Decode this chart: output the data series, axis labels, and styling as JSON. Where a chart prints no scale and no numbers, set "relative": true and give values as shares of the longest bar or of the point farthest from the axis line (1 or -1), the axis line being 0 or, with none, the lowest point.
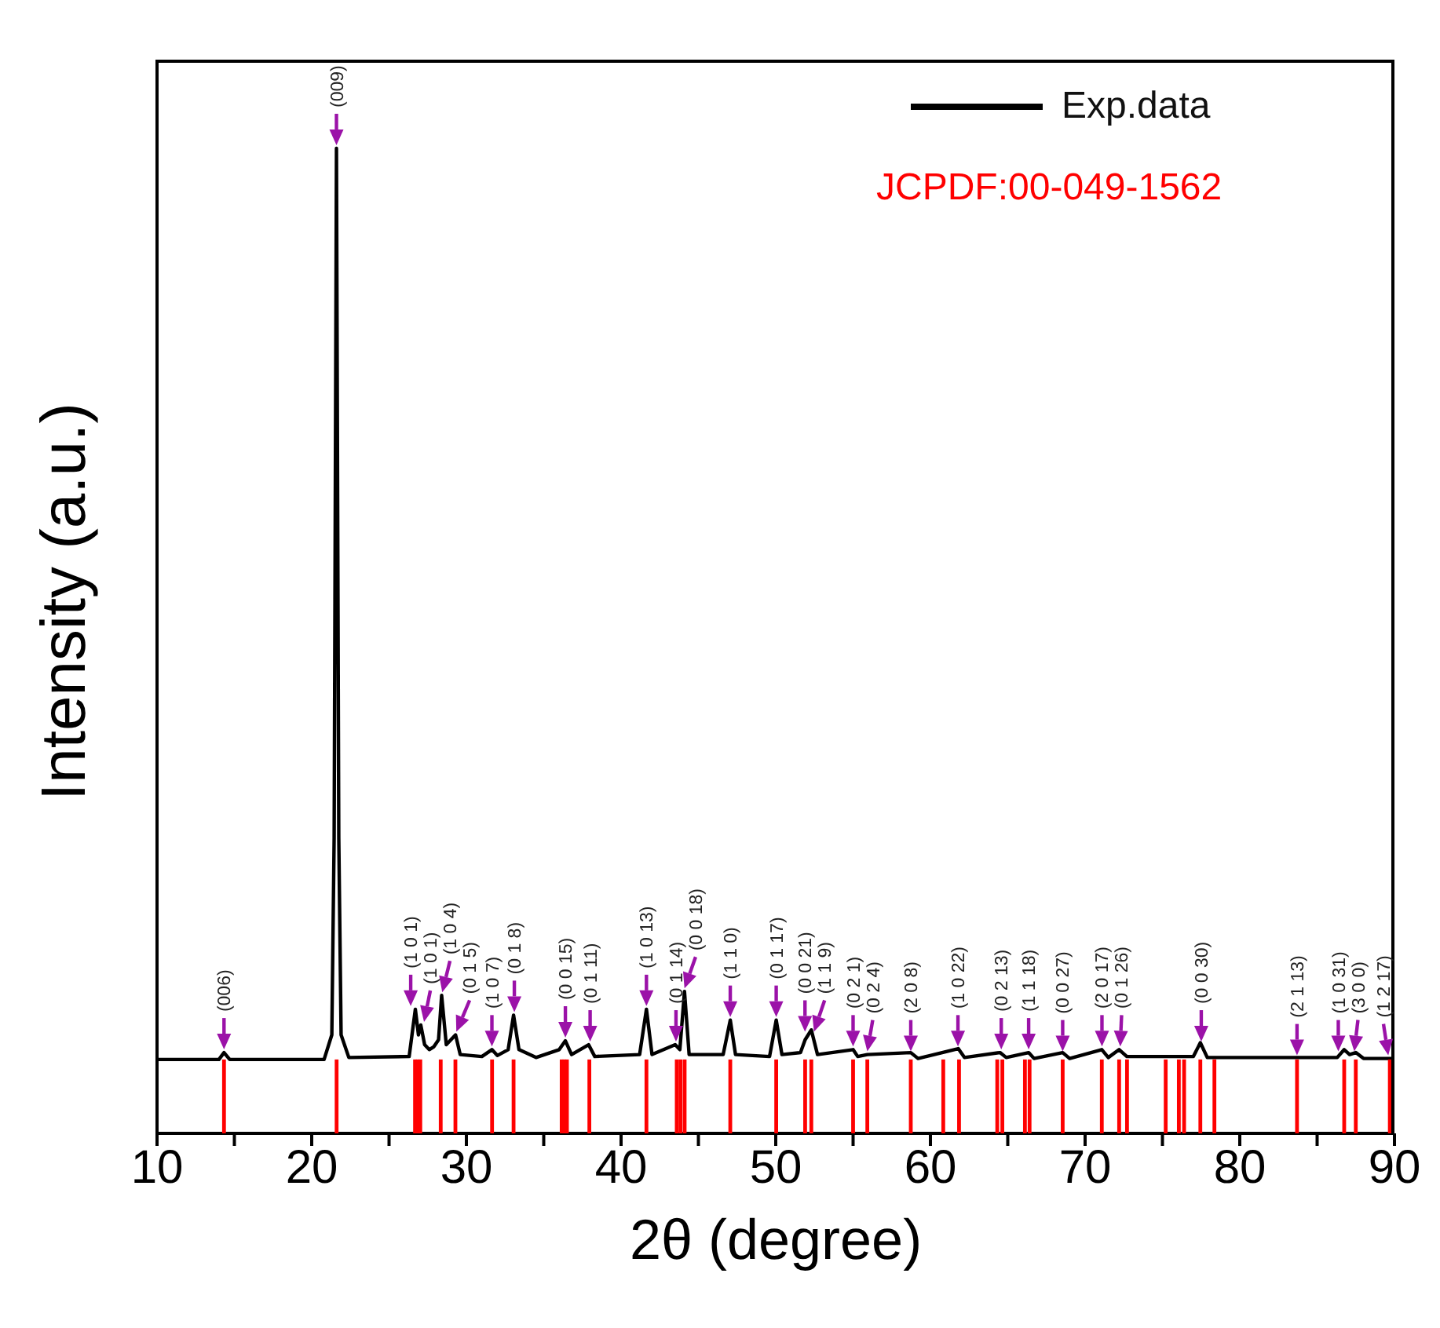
{
  "chart_data": {
    "type": "line",
    "relative": true,
    "xlabel": "2θ (degree)",
    "ylabel": "Intensity (a.u.)",
    "xlim": [
      10,
      90
    ],
    "xticks": [
      10,
      {
        "value": 15,
        "label": null
      },
      20,
      {
        "value": 25,
        "label": null
      },
      30,
      {
        "value": 35,
        "label": null
      },
      40,
      {
        "value": 45,
        "label": null
      },
      50,
      {
        "value": 55,
        "label": null
      },
      60,
      {
        "value": 65,
        "label": null
      },
      70,
      {
        "value": 75,
        "label": null
      },
      80,
      {
        "value": 85,
        "label": null
      },
      90
    ],
    "legend": "top right",
    "grid": false,
    "series": [
      {
        "name": "Exp.data",
        "color": "#000000",
        "x": [
          10,
          14.0,
          14.33,
          14.7,
          20.8,
          21.3,
          21.45,
          21.6,
          21.75,
          21.9,
          22.4,
          26.3,
          26.7,
          26.9,
          27.05,
          27.3,
          27.6,
          27.9,
          28.2,
          28.4,
          28.7,
          29.3,
          29.6,
          31.0,
          31.65,
          32.0,
          32.7,
          33.05,
          33.4,
          34.5,
          36.0,
          36.4,
          36.8,
          37.9,
          38.3,
          41.2,
          41.64,
          42.0,
          43.5,
          43.8,
          44.1,
          44.4,
          46.6,
          47.06,
          47.4,
          49.6,
          50.03,
          50.4,
          51.6,
          51.9,
          52.3,
          52.7,
          55.0,
          55.3,
          55.92,
          58.73,
          59.2,
          61.8,
          62.2,
          64.5,
          64.9,
          66.35,
          66.7,
          68.55,
          69,
          71.08,
          71.5,
          72.2,
          72.7,
          77.0,
          77.45,
          77.9,
          86.3,
          86.75,
          87.1,
          87.5,
          88,
          90
        ],
        "values": [
          0.075,
          0.075,
          0.082,
          0.075,
          0.075,
          0.1,
          0.3,
          1,
          0.3,
          0.1,
          0.077,
          0.078,
          0.126,
          0.1,
          0.11,
          0.09,
          0.085,
          0.088,
          0.095,
          0.14,
          0.09,
          0.1,
          0.08,
          0.078,
          0.085,
          0.079,
          0.085,
          0.12,
          0.085,
          0.077,
          0.085,
          0.094,
          0.08,
          0.09,
          0.078,
          0.08,
          0.126,
          0.08,
          0.09,
          0.085,
          0.144,
          0.08,
          0.08,
          0.115,
          0.08,
          0.078,
          0.115,
          0.08,
          0.082,
          0.095,
          0.105,
          0.08,
          0.085,
          0.078,
          0.08,
          0.082,
          0.076,
          0.086,
          0.077,
          0.082,
          0.077,
          0.082,
          0.076,
          0.082,
          0.076,
          0.085,
          0.077,
          0.085,
          0.078,
          0.078,
          0.092,
          0.077,
          0.077,
          0.085,
          0.08,
          0.082,
          0.076,
          0.076
        ]
      },
      {
        "name": "JCPDF:00-049-1562",
        "type": "bar",
        "color": "#ff0000",
        "x": [
          14.33,
          21.61,
          26.68,
          26.85,
          27.02,
          28.34,
          29.29,
          31.66,
          33.05,
          36.16,
          36.33,
          36.5,
          37.95,
          41.64,
          43.6,
          43.84,
          44.11,
          47.06,
          50.03,
          51.9,
          52.3,
          55.0,
          55.92,
          58.73,
          60.83,
          61.85,
          64.32,
          64.65,
          66.11,
          66.41,
          68.55,
          71.08,
          72.2,
          72.71,
          75.21,
          76.06,
          76.4,
          77.45,
          78.36,
          83.7,
          86.75,
          87.5,
          89.7
        ],
        "values": [
          0.075,
          0.075,
          0.075,
          0.075,
          0.075,
          0.075,
          0.075,
          0.075,
          0.075,
          0.075,
          0.075,
          0.075,
          0.075,
          0.075,
          0.075,
          0.075,
          0.075,
          0.075,
          0.075,
          0.075,
          0.075,
          0.075,
          0.075,
          0.075,
          0.075,
          0.075,
          0.075,
          0.075,
          0.075,
          0.075,
          0.075,
          0.075,
          0.075,
          0.075,
          0.075,
          0.075,
          0.075,
          0.075,
          0.075,
          0.075,
          0.075,
          0.075,
          0.075
        ]
      }
    ],
    "annotations": [
      {
        "text": "(006)",
        "x": 14.33,
        "y": 0.082
      },
      {
        "text": "(009)",
        "x": 21.6,
        "y": 1
      },
      {
        "text": "(1 0 1)",
        "x": 26.4,
        "y": 0.126
      },
      {
        "text": "(1 0 1)",
        "x": 27.26,
        "y": 0.11
      },
      {
        "text": "(1 0 4)",
        "x": 28.44,
        "y": 0.14
      },
      {
        "text": "(0 1 5)",
        "x": 29.35,
        "y": 0.1
      },
      {
        "text": "(1 0 7)",
        "x": 31.65,
        "y": 0.085
      },
      {
        "text": "(0 1 8)",
        "x": 33.1,
        "y": 0.12
      },
      {
        "text": "(0 0 15)",
        "x": 36.4,
        "y": 0.094
      },
      {
        "text": "(0 1 11)",
        "x": 38.0,
        "y": 0.09
      },
      {
        "text": "(1 0 13)",
        "x": 41.64,
        "y": 0.126
      },
      {
        "text": "(0 1 14)",
        "x": 43.55,
        "y": 0.09
      },
      {
        "text": "(0 0 18)",
        "x": 44.1,
        "y": 0.144
      },
      {
        "text": "(1 1 0)",
        "x": 47.06,
        "y": 0.115
      },
      {
        "text": "(0 1 17)",
        "x": 50.03,
        "y": 0.115
      },
      {
        "text": "(0 0 21)",
        "x": 51.89,
        "y": 0.1
      },
      {
        "text": "(1 1 9)",
        "x": 52.47,
        "y": 0.1
      },
      {
        "text": "(0 2 1)",
        "x": 55.0,
        "y": 0.085
      },
      {
        "text": "(0 2 4)",
        "x": 55.92,
        "y": 0.08
      },
      {
        "text": "(2 0 8)",
        "x": 58.73,
        "y": 0.08
      },
      {
        "text": "(1 0 22)",
        "x": 61.78,
        "y": 0.085
      },
      {
        "text": "(0 2 13)",
        "x": 64.58,
        "y": 0.082
      },
      {
        "text": "(1 1 18)",
        "x": 66.35,
        "y": 0.082
      },
      {
        "text": "(0 0 27)",
        "x": 68.55,
        "y": 0.08
      },
      {
        "text": "(2 0 17)",
        "x": 71.09,
        "y": 0.085
      },
      {
        "text": "(0 1 26)",
        "x": 72.27,
        "y": 0.085
      },
      {
        "text": "(0 0 30)",
        "x": 77.51,
        "y": 0.09
      },
      {
        "text": "(2 1 13)",
        "x": 83.7,
        "y": 0.076
      },
      {
        "text": "(1 0 31)",
        "x": 86.37,
        "y": 0.08
      },
      {
        "text": "(3 0 0)",
        "x": 87.4,
        "y": 0.08
      },
      {
        "text": "(1 2 17)",
        "x": 89.6,
        "y": 0.076
      }
    ]
  }
}
